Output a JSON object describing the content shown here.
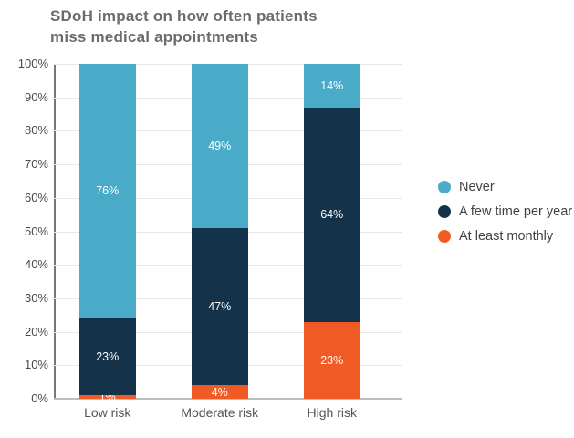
{
  "title": {
    "line1": "SDoH impact on how often patients",
    "line2": "miss medical appointments"
  },
  "chart_data": {
    "type": "bar",
    "stacked": true,
    "title": "SDoH impact on how often patients miss medical appointments",
    "categories": [
      "Low risk",
      "Moderate risk",
      "High risk"
    ],
    "series": [
      {
        "name": "Never",
        "color": "#4aabc8",
        "values": [
          76,
          49,
          14
        ],
        "labels": [
          "76%",
          "49%",
          "14%"
        ]
      },
      {
        "name": "A few time per year",
        "color": "#14324a",
        "values": [
          23,
          47,
          64
        ],
        "labels": [
          "23%",
          "47%",
          "64%"
        ]
      },
      {
        "name": "At least monthly",
        "color": "#f05b25",
        "values": [
          1,
          4,
          23
        ],
        "labels": [
          "1%",
          "4%",
          "23%"
        ]
      }
    ],
    "stack_order_bottom_to_top": [
      "At least monthly",
      "A few time per year",
      "Never"
    ],
    "y_ticks": [
      "100%",
      "90%",
      "80%",
      "70%",
      "60%",
      "50%",
      "40%",
      "30%",
      "20%",
      "10%",
      "0%"
    ],
    "ylim": [
      0,
      100
    ],
    "xlabel": "",
    "ylabel": "",
    "grid": true,
    "legend_position": "right",
    "label_color": "#ffffff"
  }
}
